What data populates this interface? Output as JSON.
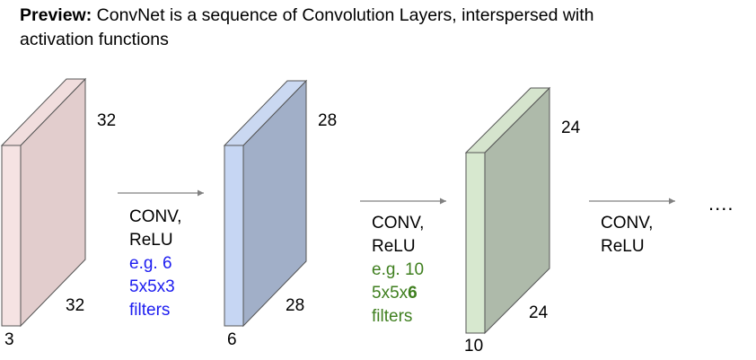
{
  "header": {
    "bold": "Preview:",
    "rest": " ConvNet is a sequence of Convolution Layers, interspersed with",
    "line2": "activation functions"
  },
  "volumes": [
    {
      "height_label": "32",
      "width_label": "32",
      "depth_label": "3",
      "front_color": "#f5e3e3",
      "side_color": "#e2cdcd",
      "top_color": "#f0dddd"
    },
    {
      "height_label": "28",
      "width_label": "28",
      "depth_label": "6",
      "front_color": "#c6d6f3",
      "side_color": "#a1afc8",
      "top_color": "#cad8f1"
    },
    {
      "height_label": "24",
      "width_label": "24",
      "depth_label": "10",
      "front_color": "#d7e8cf",
      "side_color": "#aebaaa",
      "top_color": "#d5e4cd"
    }
  ],
  "ops": [
    {
      "line1": "CONV,",
      "line2": "ReLU",
      "ex1": "e.g. 6",
      "ex2": "5x5x3",
      "ex3": "filters",
      "color": "#1c1cf0"
    },
    {
      "line1": "CONV,",
      "line2": "ReLU",
      "ex1": "e.g. 10",
      "ex2a": "5x5x",
      "ex2b": "6",
      "ex3": "filters",
      "color": "#3f7f1f"
    },
    {
      "line1": "CONV,",
      "line2": "ReLU"
    }
  ],
  "ellipsis": "...."
}
